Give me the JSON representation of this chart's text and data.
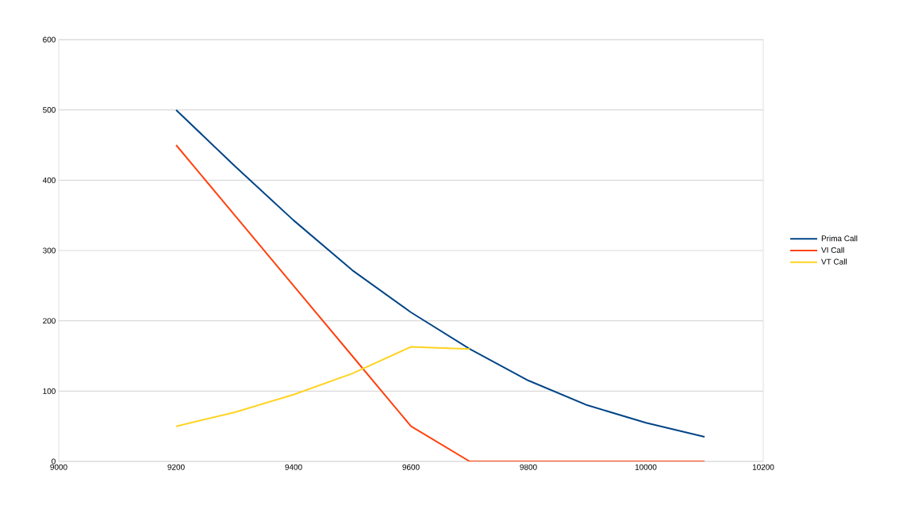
{
  "chart_data": {
    "type": "line",
    "x": [
      9200,
      9300,
      9400,
      9500,
      9600,
      9700,
      9800,
      9900,
      10000,
      10100
    ],
    "series": [
      {
        "name": "Prima Call",
        "color": "#004586",
        "values": [
          500,
          420,
          343,
          272,
          212,
          160,
          115,
          80,
          55,
          35
        ]
      },
      {
        "name": "VI Call",
        "color": "#ff420e",
        "values": [
          450,
          350,
          250,
          150,
          50,
          0,
          0,
          0,
          0,
          0
        ]
      },
      {
        "name": "VT Call",
        "color": "#ffd320",
        "values": [
          50,
          70,
          95,
          125,
          163,
          160,
          null,
          null,
          null,
          null
        ]
      }
    ],
    "xlim": [
      9000,
      10200
    ],
    "ylim": [
      0,
      600
    ],
    "xticks": [
      9000,
      9200,
      9400,
      9600,
      9800,
      10000,
      10200
    ],
    "yticks": [
      0,
      100,
      200,
      300,
      400,
      500,
      600
    ],
    "grid": "y",
    "legend": "right"
  }
}
